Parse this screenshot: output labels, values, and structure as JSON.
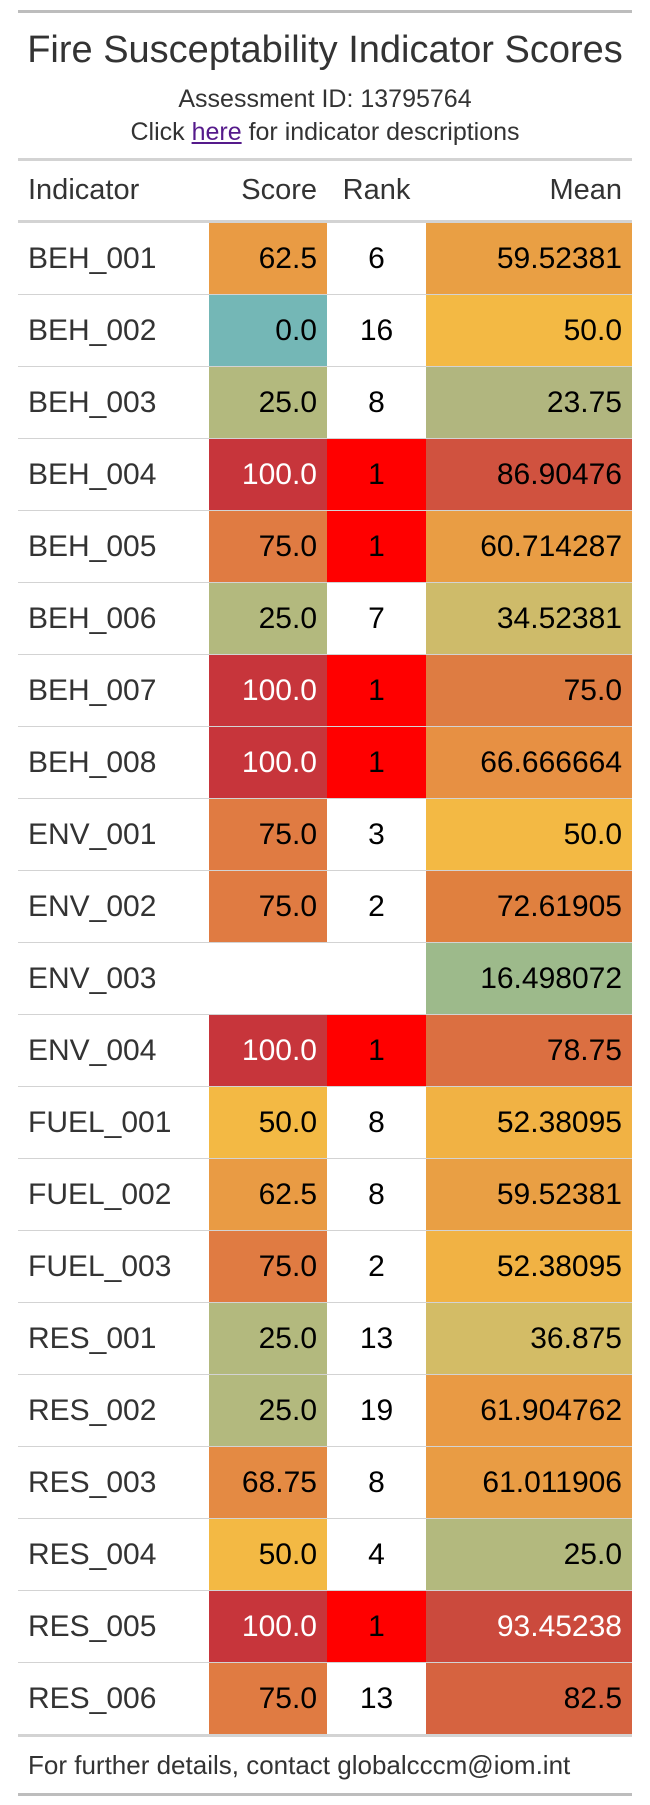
{
  "title": "Fire Susceptability Indicator Scores",
  "subtitle_line1": "Assessment ID: 13795764",
  "subtitle_line2": {
    "prefix": "Click ",
    "link": "here",
    "suffix": " for indicator descriptions"
  },
  "columns": [
    "Indicator",
    "Score",
    "Rank",
    "Mean"
  ],
  "rows": [
    {
      "indicator": "BEH_001",
      "score": "62.5",
      "rank": "6",
      "mean": "59.52381",
      "score_bg": "#E99B44",
      "rank_bg": "#FFFFFF",
      "mean_bg": "#E99F44",
      "score_fg": "#000000",
      "mean_fg": "#000000"
    },
    {
      "indicator": "BEH_002",
      "score": "0.0",
      "rank": "16",
      "mean": "50.0",
      "score_bg": "#74B7B6",
      "rank_bg": "#FFFFFF",
      "mean_bg": "#F3B944",
      "score_fg": "#000000",
      "mean_fg": "#000000"
    },
    {
      "indicator": "BEH_003",
      "score": "25.0",
      "rank": "8",
      "mean": "23.75",
      "score_bg": "#B3B97E",
      "rank_bg": "#FFFFFF",
      "mean_bg": "#B1B67F",
      "score_fg": "#000000",
      "mean_fg": "#000000"
    },
    {
      "indicator": "BEH_004",
      "score": "100.0",
      "rank": "1",
      "mean": "86.90476",
      "score_bg": "#C7353B",
      "rank_bg": "#FF0000",
      "mean_bg": "#D0523F",
      "score_fg": "#FFFFFF",
      "mean_fg": "#000000"
    },
    {
      "indicator": "BEH_005",
      "score": "75.0",
      "rank": "1",
      "mean": "60.714287",
      "score_bg": "#E07B42",
      "rank_bg": "#FF0000",
      "mean_bg": "#E99D44",
      "score_fg": "#000000",
      "mean_fg": "#000000"
    },
    {
      "indicator": "BEH_006",
      "score": "25.0",
      "rank": "7",
      "mean": "34.52381",
      "score_bg": "#B3B97E",
      "rank_bg": "#FFFFFF",
      "mean_bg": "#CEBB6A",
      "score_fg": "#000000",
      "mean_fg": "#000000"
    },
    {
      "indicator": "BEH_007",
      "score": "100.0",
      "rank": "1",
      "mean": "75.0",
      "score_bg": "#C7353B",
      "rank_bg": "#FF0000",
      "mean_bg": "#DE7C42",
      "score_fg": "#FFFFFF",
      "mean_fg": "#000000"
    },
    {
      "indicator": "BEH_008",
      "score": "100.0",
      "rank": "1",
      "mean": "66.666664",
      "score_bg": "#C7353B",
      "rank_bg": "#FF0000",
      "mean_bg": "#E79043",
      "score_fg": "#FFFFFF",
      "mean_fg": "#000000"
    },
    {
      "indicator": "ENV_001",
      "score": "75.0",
      "rank": "3",
      "mean": "50.0",
      "score_bg": "#E07B42",
      "rank_bg": "#FFFFFF",
      "mean_bg": "#F3B944",
      "score_fg": "#000000",
      "mean_fg": "#000000"
    },
    {
      "indicator": "ENV_002",
      "score": "75.0",
      "rank": "2",
      "mean": "72.61905",
      "score_bg": "#E07B42",
      "rank_bg": "#FFFFFF",
      "mean_bg": "#E0803F",
      "score_fg": "#000000",
      "mean_fg": "#000000"
    },
    {
      "indicator": "ENV_003",
      "score": "",
      "rank": "",
      "mean": "16.498072",
      "score_bg": "#FFFFFF",
      "rank_bg": "#FFFFFF",
      "mean_bg": "#9DBA8B",
      "score_fg": "#000000",
      "mean_fg": "#000000"
    },
    {
      "indicator": "ENV_004",
      "score": "100.0",
      "rank": "1",
      "mean": "78.75",
      "score_bg": "#C7353B",
      "rank_bg": "#FF0000",
      "mean_bg": "#DB6F41",
      "score_fg": "#FFFFFF",
      "mean_fg": "#000000"
    },
    {
      "indicator": "FUEL_001",
      "score": "50.0",
      "rank": "8",
      "mean": "52.38095",
      "score_bg": "#F3B944",
      "rank_bg": "#FFFFFF",
      "mean_bg": "#F1B244",
      "score_fg": "#000000",
      "mean_fg": "#000000"
    },
    {
      "indicator": "FUEL_002",
      "score": "62.5",
      "rank": "8",
      "mean": "59.52381",
      "score_bg": "#E99B44",
      "rank_bg": "#FFFFFF",
      "mean_bg": "#E99F44",
      "score_fg": "#000000",
      "mean_fg": "#000000"
    },
    {
      "indicator": "FUEL_003",
      "score": "75.0",
      "rank": "2",
      "mean": "52.38095",
      "score_bg": "#E07B42",
      "rank_bg": "#FFFFFF",
      "mean_bg": "#F1B244",
      "score_fg": "#000000",
      "mean_fg": "#000000"
    },
    {
      "indicator": "RES_001",
      "score": "25.0",
      "rank": "13",
      "mean": "36.875",
      "score_bg": "#B3B97E",
      "rank_bg": "#FFFFFF",
      "mean_bg": "#D3BC66",
      "score_fg": "#000000",
      "mean_fg": "#000000"
    },
    {
      "indicator": "RES_002",
      "score": "25.0",
      "rank": "19",
      "mean": "61.904762",
      "score_bg": "#B3B97E",
      "rank_bg": "#FFFFFF",
      "mean_bg": "#E99A44",
      "score_fg": "#000000",
      "mean_fg": "#000000"
    },
    {
      "indicator": "RES_003",
      "score": "68.75",
      "rank": "8",
      "mean": "61.011906",
      "score_bg": "#E48A43",
      "rank_bg": "#FFFFFF",
      "mean_bg": "#E99C44",
      "score_fg": "#000000",
      "mean_fg": "#000000"
    },
    {
      "indicator": "RES_004",
      "score": "50.0",
      "rank": "4",
      "mean": "25.0",
      "score_bg": "#F3B944",
      "rank_bg": "#FFFFFF",
      "mean_bg": "#B3B97E",
      "score_fg": "#000000",
      "mean_fg": "#000000"
    },
    {
      "indicator": "RES_005",
      "score": "100.0",
      "rank": "1",
      "mean": "93.45238",
      "score_bg": "#C7353B",
      "rank_bg": "#FF0000",
      "mean_bg": "#CB4A3D",
      "score_fg": "#FFFFFF",
      "mean_fg": "#FFFFFF"
    },
    {
      "indicator": "RES_006",
      "score": "75.0",
      "rank": "13",
      "mean": "82.5",
      "score_bg": "#E07B42",
      "rank_bg": "#FFFFFF",
      "mean_bg": "#D66340",
      "score_fg": "#000000",
      "mean_fg": "#000000"
    }
  ],
  "footer": "For further details, contact globalcccm@iom.int"
}
